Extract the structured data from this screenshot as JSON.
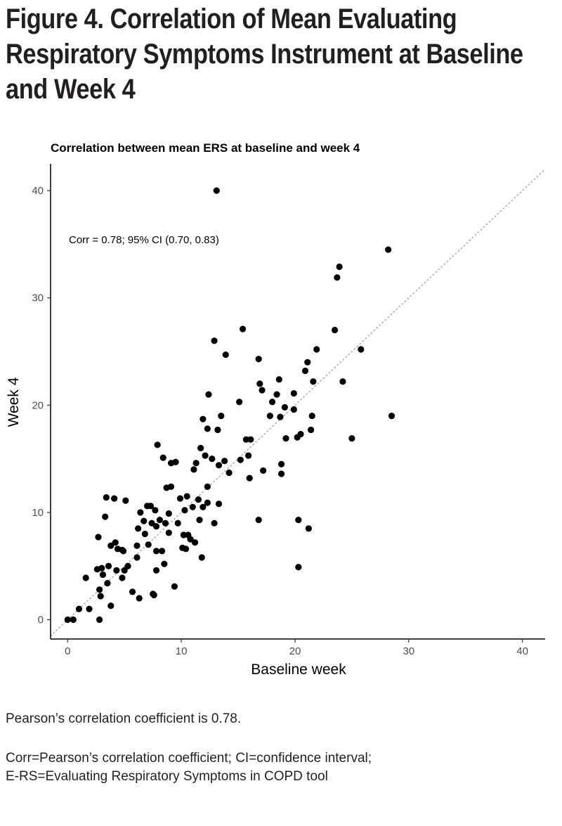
{
  "figure": {
    "title": "Figure 4. Correlation of Mean Evaluating Respiratory Symptoms Instrument at Baseline and Week 4"
  },
  "chart_data": {
    "type": "scatter",
    "title": "Correlation between mean ERS at baseline and week 4",
    "xlabel": "Baseline week",
    "ylabel": "Week 4",
    "xlim": [
      -1.5,
      42
    ],
    "ylim": [
      -1.8,
      42.5
    ],
    "x_ticks": [
      0,
      10,
      20,
      30,
      40
    ],
    "y_ticks": [
      0,
      10,
      20,
      30,
      40
    ],
    "annotation": "Corr = 0.78; 95% CI (0.70, 0.83)",
    "reference_line": "identity (y = x), dotted",
    "grid": false,
    "points": [
      [
        0,
        0
      ],
      [
        0.5,
        0
      ],
      [
        1.0,
        1.0
      ],
      [
        1.9,
        1.0
      ],
      [
        2.8,
        0.0
      ],
      [
        2.8,
        2.8
      ],
      [
        2.9,
        2.2
      ],
      [
        3.0,
        4.8
      ],
      [
        3.5,
        3.4
      ],
      [
        3.8,
        1.3
      ],
      [
        1.6,
        3.9
      ],
      [
        2.6,
        4.7
      ],
      [
        3.1,
        4.2
      ],
      [
        3.3,
        9.6
      ],
      [
        3.4,
        11.4
      ],
      [
        2.7,
        7.7
      ],
      [
        3.6,
        5.0
      ],
      [
        3.8,
        6.9
      ],
      [
        4.2,
        7.2
      ],
      [
        4.4,
        6.6
      ],
      [
        4.3,
        4.6
      ],
      [
        4.1,
        11.3
      ],
      [
        4.8,
        6.5
      ],
      [
        4.9,
        6.4
      ],
      [
        4.8,
        3.9
      ],
      [
        5.0,
        4.6
      ],
      [
        5.1,
        11.1
      ],
      [
        5.3,
        5.0
      ],
      [
        5.7,
        2.6
      ],
      [
        6.1,
        5.8
      ],
      [
        6.1,
        6.9
      ],
      [
        6.3,
        2.0
      ],
      [
        6.2,
        8.5
      ],
      [
        6.4,
        10.0
      ],
      [
        6.7,
        9.2
      ],
      [
        6.8,
        8.0
      ],
      [
        7.0,
        10.6
      ],
      [
        7.1,
        7.0
      ],
      [
        7.3,
        10.6
      ],
      [
        7.4,
        9.0
      ],
      [
        7.5,
        2.4
      ],
      [
        7.6,
        2.3
      ],
      [
        7.7,
        10.2
      ],
      [
        7.8,
        8.7
      ],
      [
        7.8,
        6.4
      ],
      [
        7.8,
        4.6
      ],
      [
        7.9,
        16.3
      ],
      [
        8.1,
        9.3
      ],
      [
        8.3,
        6.4
      ],
      [
        8.4,
        15.1
      ],
      [
        8.5,
        5.2
      ],
      [
        8.6,
        9.0
      ],
      [
        8.7,
        12.3
      ],
      [
        8.9,
        8.1
      ],
      [
        8.9,
        9.9
      ],
      [
        9.1,
        14.6
      ],
      [
        9.1,
        12.4
      ],
      [
        9.4,
        3.1
      ],
      [
        9.5,
        14.7
      ],
      [
        9.7,
        9.0
      ],
      [
        9.9,
        11.3
      ],
      [
        10.1,
        6.7
      ],
      [
        10.2,
        7.9
      ],
      [
        10.3,
        10.2
      ],
      [
        10.4,
        6.6
      ],
      [
        10.5,
        11.5
      ],
      [
        10.6,
        7.9
      ],
      [
        10.8,
        7.5
      ],
      [
        11.0,
        10.5
      ],
      [
        11.1,
        14.0
      ],
      [
        11.2,
        7.2
      ],
      [
        11.3,
        14.6
      ],
      [
        11.5,
        11.2
      ],
      [
        11.6,
        9.3
      ],
      [
        11.7,
        16.0
      ],
      [
        11.8,
        5.8
      ],
      [
        11.9,
        18.7
      ],
      [
        11.9,
        10.5
      ],
      [
        12.1,
        15.3
      ],
      [
        12.3,
        12.4
      ],
      [
        12.3,
        17.8
      ],
      [
        12.4,
        21.0
      ],
      [
        12.3,
        10.9
      ],
      [
        12.7,
        15.0
      ],
      [
        12.9,
        9.0
      ],
      [
        12.9,
        26.0
      ],
      [
        13.1,
        40.0
      ],
      [
        13.2,
        17.7
      ],
      [
        13.3,
        14.4
      ],
      [
        13.3,
        10.8
      ],
      [
        13.5,
        19.0
      ],
      [
        13.9,
        24.7
      ],
      [
        13.8,
        14.8
      ],
      [
        14.2,
        13.7
      ],
      [
        15.1,
        20.3
      ],
      [
        15.2,
        14.9
      ],
      [
        15.4,
        27.1
      ],
      [
        15.7,
        16.8
      ],
      [
        15.9,
        15.3
      ],
      [
        16.0,
        13.2
      ],
      [
        16.1,
        16.8
      ],
      [
        16.8,
        24.3
      ],
      [
        16.8,
        9.3
      ],
      [
        16.9,
        22.0
      ],
      [
        17.1,
        21.4
      ],
      [
        17.2,
        13.9
      ],
      [
        17.8,
        19.0
      ],
      [
        18.0,
        20.3
      ],
      [
        18.4,
        21.0
      ],
      [
        18.6,
        22.4
      ],
      [
        18.7,
        18.9
      ],
      [
        18.8,
        14.5
      ],
      [
        18.8,
        13.6
      ],
      [
        19.1,
        19.8
      ],
      [
        19.2,
        16.9
      ],
      [
        19.9,
        21.1
      ],
      [
        19.9,
        19.6
      ],
      [
        20.2,
        17.0
      ],
      [
        20.3,
        9.3
      ],
      [
        20.3,
        4.9
      ],
      [
        20.5,
        17.3
      ],
      [
        20.9,
        23.2
      ],
      [
        21.1,
        24.0
      ],
      [
        21.2,
        8.5
      ],
      [
        21.4,
        17.7
      ],
      [
        21.6,
        22.2
      ],
      [
        21.5,
        19.0
      ],
      [
        21.9,
        25.2
      ],
      [
        23.5,
        27.0
      ],
      [
        23.7,
        31.9
      ],
      [
        23.9,
        32.9
      ],
      [
        24.2,
        22.2
      ],
      [
        25.0,
        16.9
      ],
      [
        25.8,
        25.2
      ],
      [
        28.2,
        34.5
      ],
      [
        28.5,
        19.0
      ]
    ]
  },
  "notes": {
    "line1": "Pearson’s correlation coefficient is 0.78.",
    "line2": "Corr=Pearson’s correlation coefficient; CI=confidence interval;",
    "line3": "E-RS=Evaluating Respiratory Symptoms in COPD tool"
  }
}
